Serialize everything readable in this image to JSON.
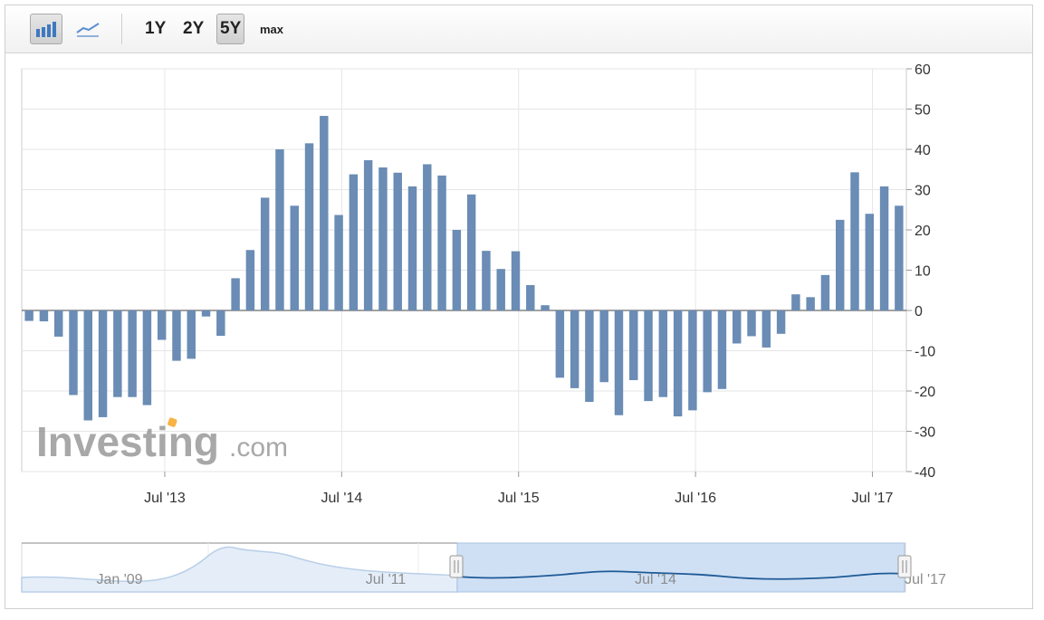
{
  "toolbar": {
    "icons": [
      "bar-chart-icon",
      "line-chart-icon"
    ],
    "active_icon": "bar-chart-icon",
    "ranges": [
      "1Y",
      "2Y",
      "5Y",
      "max"
    ],
    "active_range": "5Y"
  },
  "watermark": {
    "brand": "Investing",
    "suffix": ".com"
  },
  "colors": {
    "bar": "#6a8cb5",
    "grid": "#e6e6e6",
    "navigator_fill": "#cfe0f4",
    "navigator_line": "#1f5a96"
  },
  "chart_data": {
    "type": "bar",
    "ylim": [
      -40,
      60
    ],
    "yticks": [
      60,
      50,
      40,
      30,
      20,
      10,
      0,
      -10,
      -20,
      -30,
      -40
    ],
    "axis_position": "right",
    "grid": true,
    "xticks": [
      {
        "label": "Jul '13",
        "index": 9.7
      },
      {
        "label": "Jul '14",
        "index": 21.7
      },
      {
        "label": "Jul '15",
        "index": 33.7
      },
      {
        "label": "Jul '16",
        "index": 45.7
      },
      {
        "label": "Jul '17",
        "index": 57.7
      }
    ],
    "values": [
      -2.6,
      -2.7,
      -6.5,
      -21,
      -27.3,
      -26.5,
      -21.5,
      -21.5,
      -23.5,
      -7.3,
      -12.5,
      -12,
      -1.5,
      -6.3,
      8,
      15,
      28,
      40,
      26,
      41.5,
      48.3,
      23.7,
      33.8,
      37.3,
      35.5,
      34.2,
      30.8,
      36.3,
      33.5,
      20,
      28.8,
      14.8,
      10.3,
      14.7,
      6.3,
      1.3,
      -16.7,
      -19.3,
      -22.7,
      -17.8,
      -26,
      -17.3,
      -22.5,
      -21.5,
      -26.3,
      -24.8,
      -20.3,
      -19.5,
      -8.2,
      -6.4,
      -9.2,
      -5.8,
      4,
      3.3,
      8.8,
      22.5,
      34.3,
      24,
      30.8,
      26
    ]
  },
  "navigator": {
    "labels": [
      "Jan '09",
      "Jul '11",
      "Jul '14",
      "Jul '17"
    ]
  }
}
